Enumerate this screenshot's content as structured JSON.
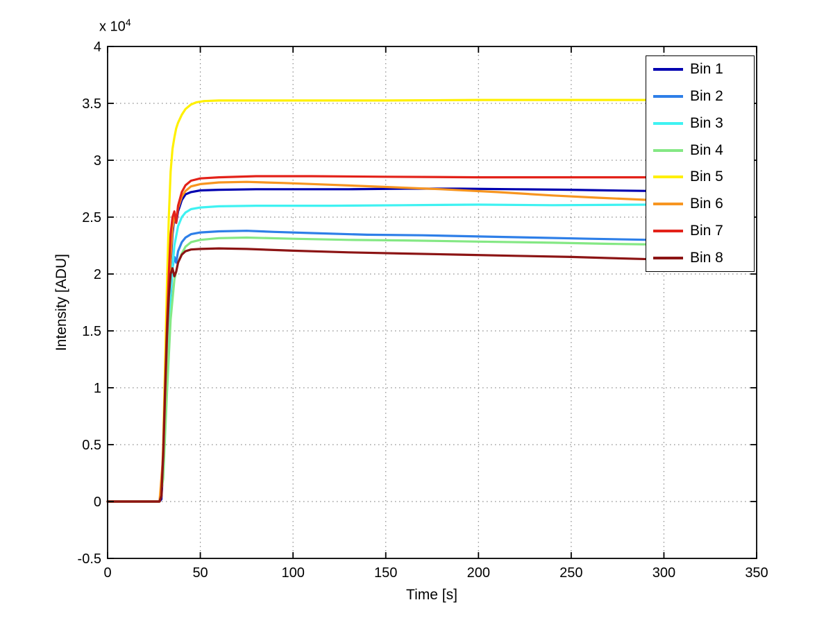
{
  "window": {
    "background": "#FFFFFF"
  },
  "chart_data": {
    "type": "line",
    "title": "",
    "xlabel": "Time [s]",
    "ylabel": "Intensity [ADU]",
    "y_axis_multiplier": {
      "prefix": "x 10",
      "exponent": "4"
    },
    "xlim": [
      0,
      350
    ],
    "ylim": [
      -5000,
      40000
    ],
    "x_tick_values": [
      0,
      50,
      100,
      150,
      200,
      250,
      300,
      350
    ],
    "x_tick_labels": [
      "0",
      "50",
      "100",
      "150",
      "200",
      "250",
      "300",
      "350"
    ],
    "y_tick_values": [
      -5000,
      0,
      5000,
      10000,
      15000,
      20000,
      25000,
      30000,
      35000,
      40000
    ],
    "y_tick_labels": [
      "-0.5",
      "0",
      "0.5",
      "1",
      "1.5",
      "2",
      "2.5",
      "3",
      "3.5",
      "4"
    ],
    "grid": true,
    "grid_color": "#8a8a8a",
    "axes_color": "#000000",
    "legend_position": "top-right",
    "series": [
      {
        "name": "Bin 1",
        "color": "#0000B0",
        "points": [
          [
            0,
            0
          ],
          [
            28,
            0
          ],
          [
            29,
            200
          ],
          [
            30,
            3000
          ],
          [
            31,
            8000
          ],
          [
            32,
            13000
          ],
          [
            33,
            17500
          ],
          [
            34,
            21000
          ],
          [
            35,
            23500
          ],
          [
            36,
            25000
          ],
          [
            37,
            24500
          ],
          [
            38,
            25500
          ],
          [
            40,
            26500
          ],
          [
            42,
            27000
          ],
          [
            45,
            27200
          ],
          [
            50,
            27350
          ],
          [
            60,
            27400
          ],
          [
            80,
            27450
          ],
          [
            100,
            27450
          ],
          [
            130,
            27450
          ],
          [
            160,
            27500
          ],
          [
            190,
            27500
          ],
          [
            220,
            27450
          ],
          [
            250,
            27400
          ],
          [
            270,
            27350
          ],
          [
            293,
            27300
          ]
        ]
      },
      {
        "name": "Bin 2",
        "color": "#2E7FE8",
        "points": [
          [
            0,
            0
          ],
          [
            28,
            0
          ],
          [
            30,
            2500
          ],
          [
            32,
            11000
          ],
          [
            34,
            18000
          ],
          [
            35,
            20500
          ],
          [
            36,
            21500
          ],
          [
            37,
            21000
          ],
          [
            38,
            22000
          ],
          [
            40,
            22800
          ],
          [
            42,
            23200
          ],
          [
            45,
            23500
          ],
          [
            50,
            23650
          ],
          [
            60,
            23750
          ],
          [
            75,
            23800
          ],
          [
            90,
            23700
          ],
          [
            110,
            23600
          ],
          [
            140,
            23450
          ],
          [
            170,
            23400
          ],
          [
            200,
            23300
          ],
          [
            230,
            23200
          ],
          [
            260,
            23100
          ],
          [
            293,
            23000
          ]
        ]
      },
      {
        "name": "Bin 3",
        "color": "#3FF2F2",
        "points": [
          [
            0,
            0
          ],
          [
            28,
            0
          ],
          [
            30,
            2500
          ],
          [
            32,
            11000
          ],
          [
            34,
            18500
          ],
          [
            36,
            22500
          ],
          [
            38,
            24200
          ],
          [
            40,
            25000
          ],
          [
            42,
            25400
          ],
          [
            45,
            25700
          ],
          [
            50,
            25850
          ],
          [
            60,
            25950
          ],
          [
            80,
            26000
          ],
          [
            120,
            26000
          ],
          [
            160,
            26050
          ],
          [
            200,
            26100
          ],
          [
            240,
            26050
          ],
          [
            293,
            26100
          ]
        ]
      },
      {
        "name": "Bin 4",
        "color": "#84E884",
        "points": [
          [
            0,
            0
          ],
          [
            28,
            0
          ],
          [
            30,
            2000
          ],
          [
            32,
            9500
          ],
          [
            34,
            16000
          ],
          [
            36,
            19500
          ],
          [
            38,
            21000
          ],
          [
            40,
            21800
          ],
          [
            42,
            22400
          ],
          [
            45,
            22800
          ],
          [
            50,
            23000
          ],
          [
            60,
            23150
          ],
          [
            75,
            23200
          ],
          [
            100,
            23100
          ],
          [
            130,
            23000
          ],
          [
            160,
            22950
          ],
          [
            200,
            22850
          ],
          [
            240,
            22750
          ],
          [
            270,
            22650
          ],
          [
            293,
            22600
          ]
        ]
      },
      {
        "name": "Bin 5",
        "color": "#FFF000",
        "points": [
          [
            0,
            0
          ],
          [
            28,
            0
          ],
          [
            29,
            500
          ],
          [
            30,
            5000
          ],
          [
            31,
            12000
          ],
          [
            32,
            19000
          ],
          [
            33,
            25000
          ],
          [
            34,
            29000
          ],
          [
            35,
            31000
          ],
          [
            36,
            32000
          ],
          [
            37,
            32800
          ],
          [
            38,
            33300
          ],
          [
            40,
            34000
          ],
          [
            42,
            34500
          ],
          [
            45,
            34900
          ],
          [
            48,
            35100
          ],
          [
            52,
            35200
          ],
          [
            60,
            35250
          ],
          [
            100,
            35250
          ],
          [
            150,
            35250
          ],
          [
            200,
            35300
          ],
          [
            250,
            35300
          ],
          [
            293,
            35300
          ]
        ]
      },
      {
        "name": "Bin 6",
        "color": "#F79520",
        "points": [
          [
            0,
            0
          ],
          [
            28,
            0
          ],
          [
            30,
            4000
          ],
          [
            32,
            14000
          ],
          [
            34,
            21500
          ],
          [
            35,
            24000
          ],
          [
            36,
            25000
          ],
          [
            37,
            24700
          ],
          [
            38,
            25800
          ],
          [
            40,
            26800
          ],
          [
            42,
            27300
          ],
          [
            45,
            27700
          ],
          [
            50,
            27900
          ],
          [
            60,
            28050
          ],
          [
            75,
            28100
          ],
          [
            95,
            28000
          ],
          [
            120,
            27850
          ],
          [
            150,
            27650
          ],
          [
            180,
            27450
          ],
          [
            210,
            27200
          ],
          [
            240,
            26900
          ],
          [
            265,
            26700
          ],
          [
            293,
            26500
          ]
        ]
      },
      {
        "name": "Bin 7",
        "color": "#E32219",
        "points": [
          [
            0,
            0
          ],
          [
            28,
            0
          ],
          [
            29,
            500
          ],
          [
            30,
            4500
          ],
          [
            31,
            10000
          ],
          [
            32,
            15500
          ],
          [
            33,
            20000
          ],
          [
            34,
            23500
          ],
          [
            35,
            25000
          ],
          [
            36,
            25500
          ],
          [
            37,
            24500
          ],
          [
            38,
            26000
          ],
          [
            40,
            27200
          ],
          [
            42,
            27800
          ],
          [
            45,
            28200
          ],
          [
            50,
            28400
          ],
          [
            60,
            28500
          ],
          [
            80,
            28600
          ],
          [
            110,
            28600
          ],
          [
            150,
            28550
          ],
          [
            200,
            28500
          ],
          [
            250,
            28500
          ],
          [
            293,
            28500
          ]
        ]
      },
      {
        "name": "Bin 8",
        "color": "#8C1414",
        "points": [
          [
            0,
            0
          ],
          [
            28,
            0
          ],
          [
            29,
            500
          ],
          [
            30,
            4000
          ],
          [
            31,
            9500
          ],
          [
            32,
            14500
          ],
          [
            33,
            18000
          ],
          [
            34,
            20000
          ],
          [
            35,
            20500
          ],
          [
            36,
            19800
          ],
          [
            37,
            20200
          ],
          [
            38,
            21000
          ],
          [
            40,
            21700
          ],
          [
            42,
            22000
          ],
          [
            45,
            22150
          ],
          [
            50,
            22200
          ],
          [
            60,
            22250
          ],
          [
            75,
            22200
          ],
          [
            100,
            22050
          ],
          [
            130,
            21900
          ],
          [
            160,
            21800
          ],
          [
            190,
            21700
          ],
          [
            220,
            21600
          ],
          [
            250,
            21500
          ],
          [
            270,
            21400
          ],
          [
            293,
            21300
          ]
        ]
      }
    ]
  }
}
